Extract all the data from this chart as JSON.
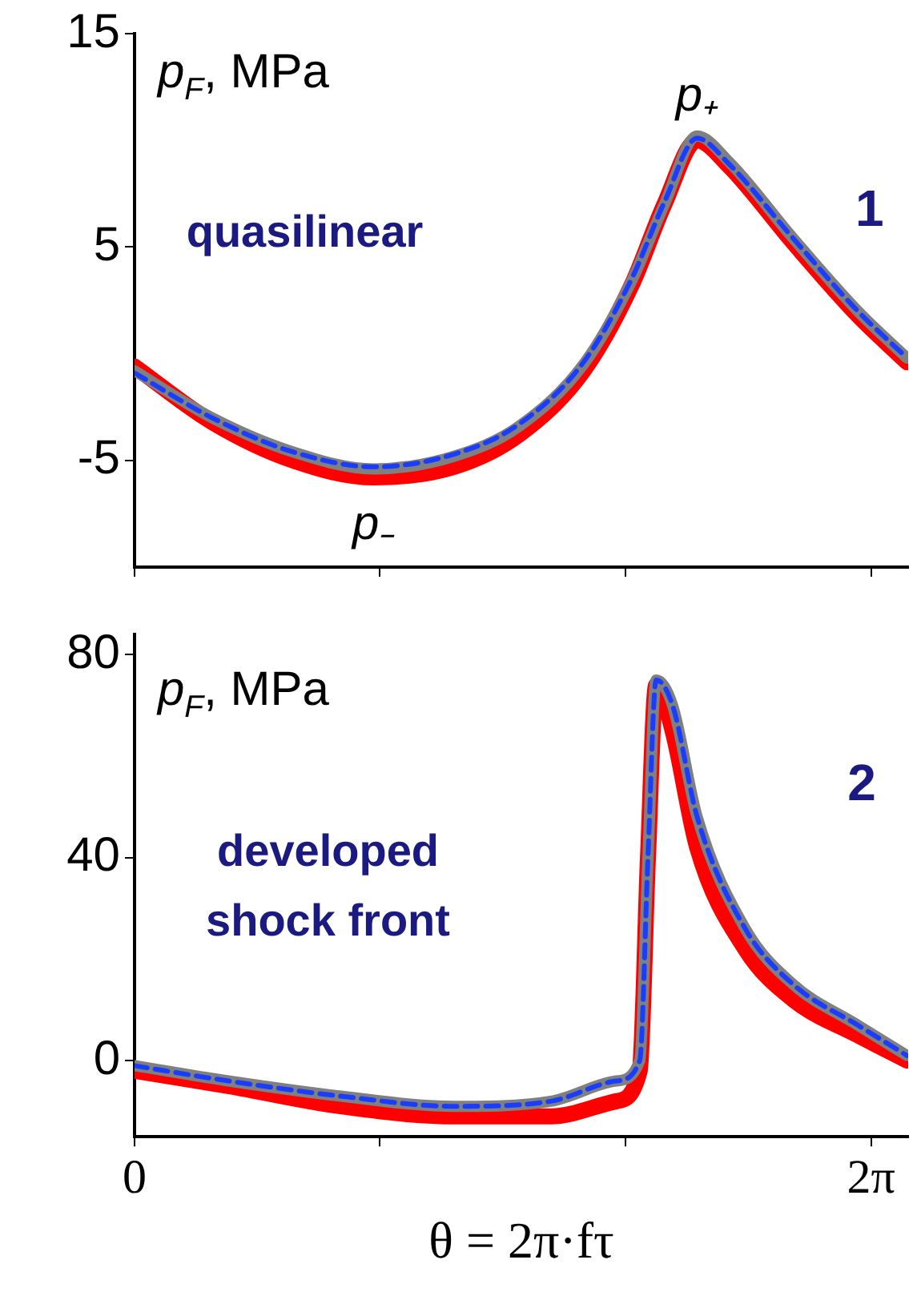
{
  "chart_data": [
    {
      "type": "line",
      "xlim": [
        0,
        6.6
      ],
      "xticks": [
        {
          "value": 0,
          "label": null
        },
        {
          "value": 2.094,
          "label": null
        },
        {
          "value": 4.189,
          "label": null
        },
        {
          "value": 6.283,
          "label": null
        }
      ],
      "ylim": [
        -10,
        15
      ],
      "yticks": [
        -5,
        5,
        15
      ],
      "tick_labels": "y",
      "marker": "none",
      "grid": false,
      "x": [
        0,
        0.66,
        1.35,
        2.04,
        2.73,
        3.28,
        3.83,
        4.24,
        4.52,
        4.8,
        5.07,
        5.62,
        6.17,
        6.59
      ],
      "annotations": [
        "p$_{F}$, MPa",
        "1",
        "quasilinear",
        {
          "text": "p₊",
          "x": 4.8,
          "y": 10.2
        },
        {
          "text": "p₋",
          "x": 2.04,
          "y": -5.4
        }
      ],
      "series": [
        {
          "color": "#ff0000",
          "line_style": "solid",
          "values": [
            -0.6,
            -3.2,
            -5,
            -5.8,
            -5.3,
            -3.8,
            -0.8,
            3.2,
            7,
            10,
            8.8,
            5.2,
            1.8,
            -0.4
          ]
        },
        {
          "color": "#808080",
          "line_style": "solid",
          "values": [
            -0.8,
            -3,
            -4.6,
            -5.4,
            -4.8,
            -3.4,
            -0.5,
            3.4,
            7,
            10.2,
            9,
            5.4,
            2,
            -0.2
          ]
        },
        {
          "color": "#1a3cff",
          "line_style": "dashed",
          "values": [
            -0.9,
            -3,
            -4.6,
            -5.3,
            -4.7,
            -3.3,
            -0.4,
            3.5,
            7.1,
            10.1,
            8.9,
            5.4,
            2,
            -0.2
          ]
        }
      ]
    },
    {
      "type": "line",
      "xlim": [
        0,
        6.6
      ],
      "xticks": [
        {
          "value": 0,
          "label": "0"
        },
        {
          "value": 2.094,
          "label": null
        },
        {
          "value": 4.189,
          "label": null
        },
        {
          "value": 6.283,
          "label": "2π"
        }
      ],
      "ylim": [
        -15,
        84
      ],
      "yticks": [
        0,
        40,
        80
      ],
      "xlabel": "θ = 2π·fτ",
      "marker": "none",
      "grid": false,
      "x": [
        0,
        0.8,
        1.76,
        2.73,
        3.55,
        4.11,
        4.31,
        4.38,
        4.45,
        4.59,
        4.8,
        5.21,
        5.62,
        6.17,
        6.59
      ],
      "annotations": [
        "p$_{F}$, MPa",
        "2",
        "developed",
        "shock front"
      ],
      "series": [
        {
          "color": "#ff0000",
          "line_style": "solid",
          "values": [
            -2,
            -5,
            -9,
            -11,
            -11,
            -8,
            -2,
            40,
            74,
            65,
            42,
            22,
            12,
            5,
            0
          ]
        },
        {
          "color": "#808080",
          "line_style": "solid",
          "values": [
            -1,
            -4,
            -7,
            -9,
            -8,
            -4,
            0,
            40,
            75,
            70,
            48,
            26,
            15,
            7,
            1
          ]
        },
        {
          "color": "#1a3cff",
          "line_style": "dashed",
          "values": [
            -1,
            -4,
            -7,
            -9,
            -8,
            -4,
            0,
            40,
            75,
            70,
            48,
            26,
            15,
            7,
            1
          ]
        }
      ]
    }
  ]
}
